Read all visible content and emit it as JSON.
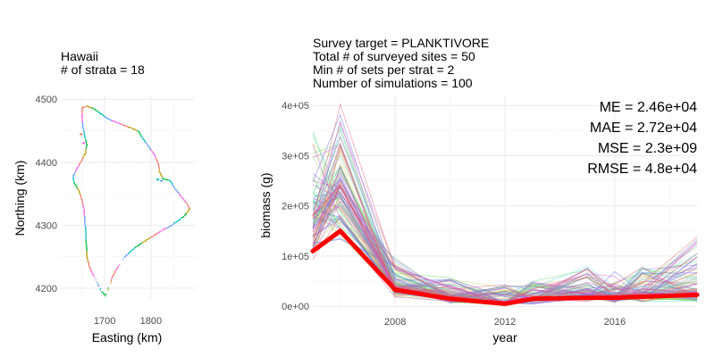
{
  "chart_data": [
    {
      "type": "scatter",
      "title": "Hawaii",
      "subtitle": "# of strata = 18",
      "xlabel": "Easting (km)",
      "ylabel": "Northing (km)",
      "xlim": [
        1605,
        1895
      ],
      "ylim": [
        4183,
        4506
      ],
      "xticks": [
        1700,
        1800
      ],
      "yticks": [
        4200,
        4300,
        4400,
        4500
      ],
      "grid": true,
      "legend": "none",
      "series_colors": [
        "#F8766D",
        "#B79F00",
        "#00BA38",
        "#00BFC4",
        "#619CFF",
        "#F564E3"
      ],
      "outline": [
        [
          1650,
          4488
        ],
        [
          1660,
          4490
        ],
        [
          1675,
          4486
        ],
        [
          1690,
          4478
        ],
        [
          1705,
          4470
        ],
        [
          1722,
          4465
        ],
        [
          1740,
          4460
        ],
        [
          1758,
          4455
        ],
        [
          1772,
          4450
        ],
        [
          1780,
          4440
        ],
        [
          1792,
          4428
        ],
        [
          1805,
          4415
        ],
        [
          1815,
          4398
        ],
        [
          1818,
          4385
        ],
        [
          1825,
          4375
        ],
        [
          1840,
          4372
        ],
        [
          1852,
          4358
        ],
        [
          1866,
          4345
        ],
        [
          1878,
          4334
        ],
        [
          1882,
          4327
        ],
        [
          1874,
          4318
        ],
        [
          1858,
          4308
        ],
        [
          1842,
          4300
        ],
        [
          1824,
          4293
        ],
        [
          1806,
          4285
        ],
        [
          1790,
          4278
        ],
        [
          1774,
          4270
        ],
        [
          1758,
          4262
        ],
        [
          1742,
          4250
        ],
        [
          1728,
          4236
        ],
        [
          1716,
          4220
        ],
        [
          1706,
          4200
        ],
        [
          1700,
          4189
        ],
        [
          1692,
          4196
        ],
        [
          1682,
          4210
        ],
        [
          1674,
          4222
        ],
        [
          1665,
          4236
        ],
        [
          1660,
          4252
        ],
        [
          1659,
          4270
        ],
        [
          1658,
          4290
        ],
        [
          1656,
          4308
        ],
        [
          1654,
          4325
        ],
        [
          1650,
          4340
        ],
        [
          1645,
          4352
        ],
        [
          1638,
          4362
        ],
        [
          1632,
          4370
        ],
        [
          1630,
          4378
        ],
        [
          1638,
          4390
        ],
        [
          1648,
          4402
        ],
        [
          1656,
          4414
        ],
        [
          1660,
          4428
        ],
        [
          1656,
          4442
        ],
        [
          1652,
          4456
        ],
        [
          1650,
          4470
        ],
        [
          1650,
          4488
        ]
      ]
    },
    {
      "type": "line",
      "title_lines": [
        "Survey target = PLANKTIVORE",
        "Total # of surveyed sites = 50",
        "Min # of sets per strat = 2",
        "Number of simulations = 100"
      ],
      "annotations": [
        "ME = 2.46e+04",
        "MAE = 2.72e+04",
        "MSE = 2.3e+09",
        "RMSE = 4.8e+04"
      ],
      "xlabel": "year",
      "ylabel": "biomass (g)",
      "xlim": [
        2005,
        2019
      ],
      "ylim": [
        -5000,
        420000
      ],
      "xticks": [
        2008,
        2012,
        2016
      ],
      "yticks": [
        0,
        100000,
        200000,
        300000,
        400000
      ],
      "ytick_labels": [
        "0e+00",
        "1e+05",
        "2e+05",
        "3e+05",
        "4e+05"
      ],
      "grid": true,
      "legend": "none",
      "truth_series": {
        "color": "#FF0000",
        "x": [
          2005,
          2006,
          2008,
          2010,
          2012,
          2013,
          2015,
          2016,
          2017,
          2019
        ],
        "values": [
          110000,
          150000,
          33000,
          15000,
          5000,
          15000,
          17000,
          17000,
          19000,
          23000
        ]
      },
      "simulations": {
        "count": 100,
        "opacity": 0.55,
        "x": [
          2005,
          2006,
          2008,
          2010,
          2012,
          2013,
          2015,
          2016,
          2017,
          2019
        ],
        "median": [
          180000,
          240000,
          40000,
          20000,
          8000,
          15000,
          25000,
          22000,
          25000,
          30000
        ],
        "min_values": [
          90000,
          130000,
          15000,
          5000,
          0,
          4000,
          8000,
          7000,
          8000,
          8000
        ],
        "max_values": [
          350000,
          405000,
          100000,
          60000,
          45000,
          50000,
          80000,
          70000,
          80000,
          160000
        ]
      }
    }
  ]
}
